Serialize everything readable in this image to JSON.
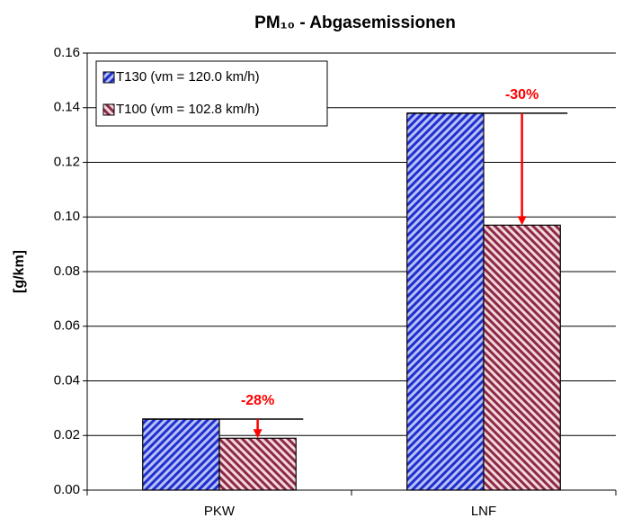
{
  "chart_data": {
    "type": "bar",
    "title": "PM₁₀ - Abgasemissionen",
    "ylabel": "[g/km]",
    "categories": [
      "PKW",
      "LNF"
    ],
    "series": [
      {
        "name": "T130 (vm = 120.0 km/h)",
        "color": "#1f2fd0",
        "values": [
          0.026,
          0.138
        ]
      },
      {
        "name": "T100 (vm = 102.8 km/h)",
        "color": "#8b2a45",
        "values": [
          0.019,
          0.097
        ]
      }
    ],
    "annotations": [
      "-28%",
      "-30%"
    ],
    "ylim": [
      0,
      0.16
    ],
    "yticks": [
      {
        "value": 0,
        "label": "0.00"
      },
      {
        "value": 0.02,
        "label": "0.02"
      },
      {
        "value": 0.04,
        "label": "0.04"
      },
      {
        "value": 0.06,
        "label": "0.06"
      },
      {
        "value": 0.08,
        "label": "0.08"
      },
      {
        "value": 0.1,
        "label": "0.10"
      },
      {
        "value": 0.12,
        "label": "0.12"
      },
      {
        "value": 0.14,
        "label": "0.14"
      },
      {
        "value": 0.16,
        "label": "0.16"
      }
    ],
    "grid": true,
    "legend": "top-left"
  }
}
